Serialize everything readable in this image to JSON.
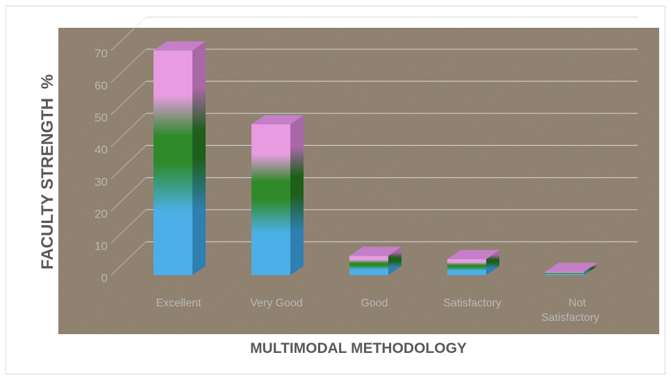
{
  "chart_data": {
    "type": "bar",
    "style": "3d-column",
    "categories": [
      "Excellent",
      "Very Good",
      "Good",
      "Satisfactory",
      "Not Satisfactory"
    ],
    "values": [
      70,
      47,
      6,
      5,
      1
    ],
    "xlabel": "MULTIMODAL METHODOLOGY",
    "ylabel": "FACULTY STRENGTH",
    "ylabel_suffix": "%",
    "ylim": [
      0,
      70
    ],
    "yticks": [
      0,
      10,
      20,
      30,
      40,
      50,
      60,
      70
    ],
    "grid": true,
    "legend": "none",
    "colors": {
      "plot_background": "#9a8b78",
      "bar_bottom": "#4cb0e8",
      "bar_middle": "#2f8a2a",
      "bar_top": "#e89be0",
      "bar_cap": "#c47fc8",
      "gridline": "#d9d9d9",
      "axis_title": "#595959",
      "tick_label": "#b8b8b8"
    }
  }
}
